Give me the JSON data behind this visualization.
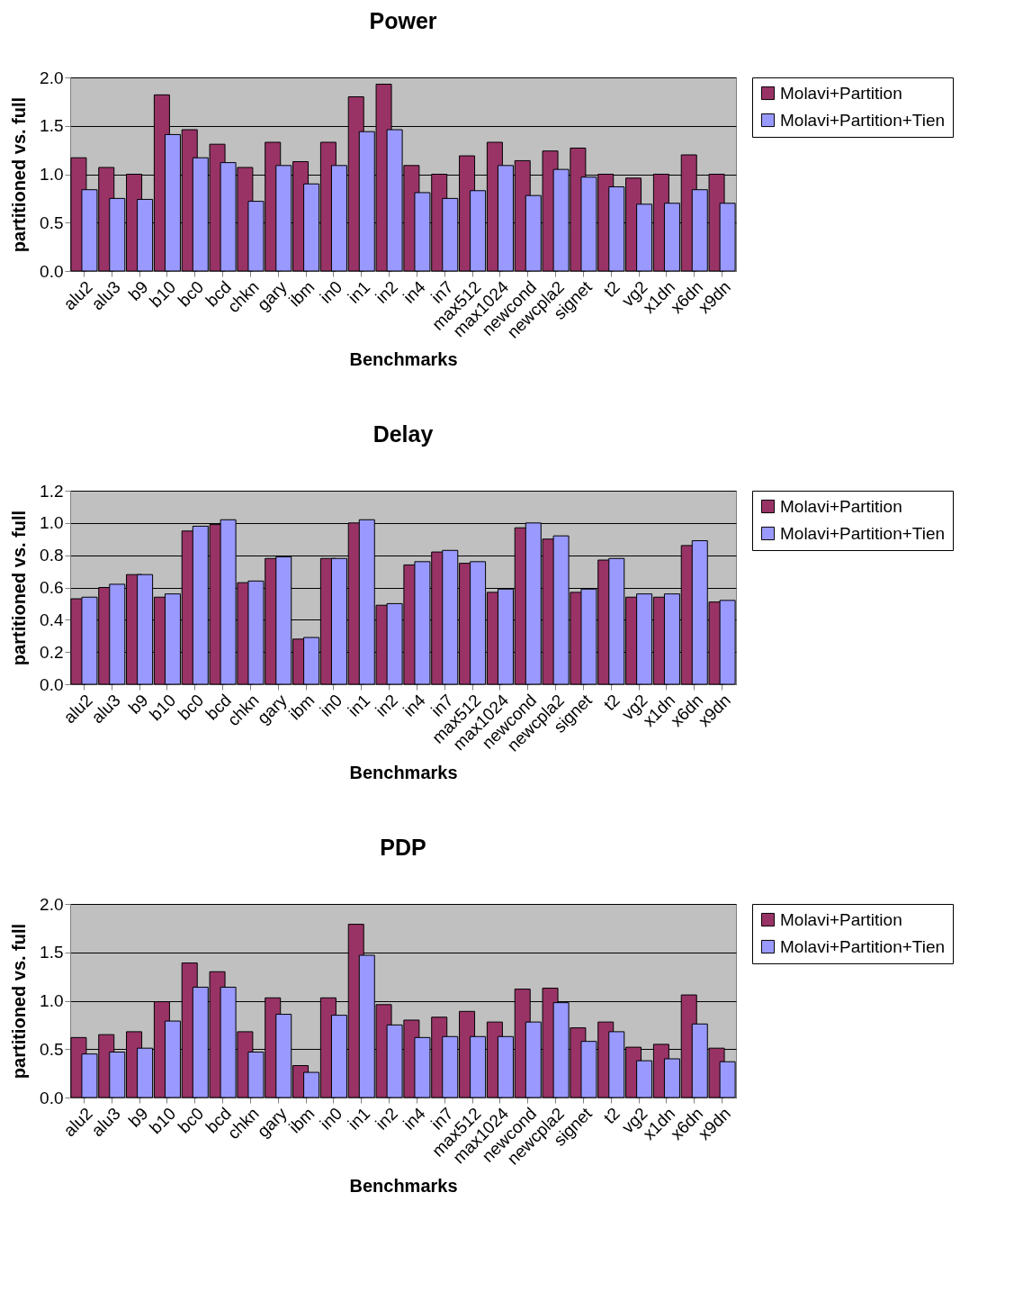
{
  "chart_data": [
    {
      "type": "bar",
      "title": "Power",
      "xlabel": "Benchmarks",
      "ylabel": "partitioned vs. full",
      "categories": [
        "alu2",
        "alu3",
        "b9",
        "b10",
        "bc0",
        "bcd",
        "chkn",
        "gary",
        "ibm",
        "in0",
        "in1",
        "in2",
        "in4",
        "in7",
        "max512",
        "max1024",
        "newcond",
        "newcpla2",
        "signet",
        "t2",
        "vg2",
        "x1dn",
        "x6dn",
        "x9dn"
      ],
      "series": [
        {
          "name": "Molavi+Partition",
          "color": "#993366",
          "values": [
            1.17,
            1.07,
            1.0,
            1.82,
            1.46,
            1.31,
            1.07,
            1.33,
            1.13,
            1.33,
            1.8,
            1.93,
            1.09,
            1.0,
            1.19,
            1.33,
            1.14,
            1.24,
            1.27,
            1.0,
            0.96,
            1.0,
            1.2,
            1.0
          ]
        },
        {
          "name": "Molavi+Partition+Tien",
          "color": "#9999ff",
          "values": [
            0.84,
            0.75,
            0.74,
            1.41,
            1.17,
            1.12,
            0.72,
            1.09,
            0.9,
            1.09,
            1.44,
            1.46,
            0.81,
            0.75,
            0.83,
            1.09,
            0.78,
            1.05,
            0.97,
            0.87,
            0.69,
            0.7,
            0.84,
            0.7
          ]
        }
      ],
      "ylim": [
        0,
        2
      ],
      "yticks": [
        {
          "value": 0,
          "label": "0.0"
        },
        {
          "value": 0.5,
          "label": "0.5"
        },
        {
          "value": 1,
          "label": "1.0"
        },
        {
          "value": 1.5,
          "label": "1.5"
        },
        {
          "value": 2,
          "label": "2.0"
        }
      ],
      "grid": "y",
      "legend": "right"
    },
    {
      "type": "bar",
      "title": "Delay",
      "xlabel": "Benchmarks",
      "ylabel": "partitioned vs. full",
      "categories": [
        "alu2",
        "alu3",
        "b9",
        "b10",
        "bc0",
        "bcd",
        "chkn",
        "gary",
        "ibm",
        "in0",
        "in1",
        "in2",
        "in4",
        "in7",
        "max512",
        "max1024",
        "newcond",
        "newcpla2",
        "signet",
        "t2",
        "vg2",
        "x1dn",
        "x6dn",
        "x9dn"
      ],
      "series": [
        {
          "name": "Molavi+Partition",
          "color": "#993366",
          "values": [
            0.53,
            0.6,
            0.68,
            0.54,
            0.95,
            0.99,
            0.63,
            0.78,
            0.28,
            0.78,
            1.0,
            0.49,
            0.74,
            0.82,
            0.75,
            0.57,
            0.97,
            0.9,
            0.57,
            0.77,
            0.54,
            0.54,
            0.86,
            0.51
          ]
        },
        {
          "name": "Molavi+Partition+Tien",
          "color": "#9999ff",
          "values": [
            0.54,
            0.62,
            0.68,
            0.56,
            0.98,
            1.02,
            0.64,
            0.79,
            0.29,
            0.78,
            1.02,
            0.5,
            0.76,
            0.83,
            0.76,
            0.59,
            1.0,
            0.92,
            0.59,
            0.78,
            0.56,
            0.56,
            0.89,
            0.52
          ]
        }
      ],
      "ylim": [
        0,
        1.2
      ],
      "yticks": [
        {
          "value": 0,
          "label": "0.0"
        },
        {
          "value": 0.2,
          "label": "0.2"
        },
        {
          "value": 0.4,
          "label": "0.4"
        },
        {
          "value": 0.6,
          "label": "0.6"
        },
        {
          "value": 0.8,
          "label": "0.8"
        },
        {
          "value": 1,
          "label": "1.0"
        },
        {
          "value": 1.2,
          "label": "1.2"
        }
      ],
      "grid": "y",
      "legend": "right"
    },
    {
      "type": "bar",
      "title": "PDP",
      "xlabel": "Benchmarks",
      "ylabel": "partitioned vs. full",
      "categories": [
        "alu2",
        "alu3",
        "b9",
        "b10",
        "bc0",
        "bcd",
        "chkn",
        "gary",
        "ibm",
        "in0",
        "in1",
        "in2",
        "in4",
        "in7",
        "max512",
        "max1024",
        "newcond",
        "newcpla2",
        "signet",
        "t2",
        "vg2",
        "x1dn",
        "x6dn",
        "x9dn"
      ],
      "series": [
        {
          "name": "Molavi+Partition",
          "color": "#993366",
          "values": [
            0.62,
            0.65,
            0.68,
            0.99,
            1.39,
            1.3,
            0.68,
            1.03,
            0.33,
            1.03,
            1.79,
            0.96,
            0.8,
            0.83,
            0.89,
            0.78,
            1.12,
            1.13,
            0.72,
            0.78,
            0.52,
            0.55,
            1.06,
            0.51
          ]
        },
        {
          "name": "Molavi+Partition+Tien",
          "color": "#9999ff",
          "values": [
            0.45,
            0.47,
            0.51,
            0.79,
            1.14,
            1.14,
            0.47,
            0.86,
            0.26,
            0.85,
            1.47,
            0.75,
            0.62,
            0.63,
            0.63,
            0.63,
            0.78,
            0.98,
            0.58,
            0.68,
            0.38,
            0.4,
            0.76,
            0.37
          ]
        }
      ],
      "ylim": [
        0,
        2
      ],
      "yticks": [
        {
          "value": 0,
          "label": "0.0"
        },
        {
          "value": 0.5,
          "label": "0.5"
        },
        {
          "value": 1,
          "label": "1.0"
        },
        {
          "value": 1.5,
          "label": "1.5"
        },
        {
          "value": 2,
          "label": "2.0"
        }
      ],
      "grid": "y",
      "legend": "right"
    }
  ]
}
